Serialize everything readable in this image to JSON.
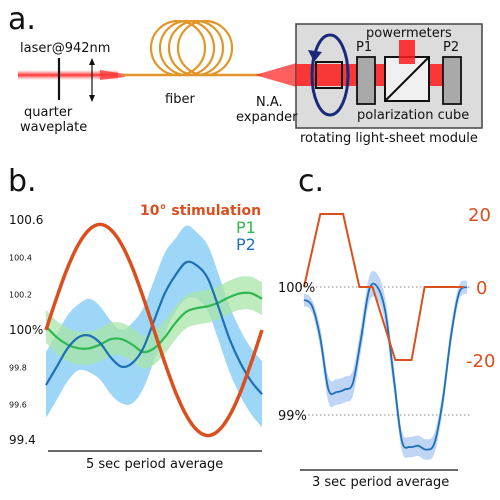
{
  "panel_a": {
    "letter": "a.",
    "laser": "laser@942nm",
    "quarter_waveplate_line1": "quarter",
    "quarter_waveplate_line2": "waveplate",
    "fiber": "fiber",
    "na_expander_line1": "N.A.",
    "na_expander_line2": "expander",
    "powermeters": "powermeters",
    "p1": "P1",
    "p2": "P2",
    "polarization_cube": "polarization cube",
    "module": "rotating light-sheet module",
    "colors": {
      "laser": "#ff1a1a",
      "fiber": "#e0962a",
      "module_box": "#dcdcdc",
      "rotation": "#1a2a7a",
      "polarizer": "#a9a9a9"
    }
  },
  "panel_b": {
    "letter": "b.",
    "stimulation_label": "10° stimulation",
    "p1_label": "P1",
    "p2_label": "P2",
    "period_label": "5 sec period average",
    "colors": {
      "stim": "#d94f1e",
      "p1": "#2fb84f",
      "p1_band": "#a8e6a8",
      "p2": "#1f6fb3",
      "p2_band": "#8ccff5"
    }
  },
  "panel_c": {
    "letter": "c.",
    "period_label": "3 sec period average",
    "colors": {
      "stim": "#d94f1e",
      "signal": "#1f6fb3",
      "band": "#b8d0f5",
      "grid": "#888888"
    }
  },
  "chart_data": [
    {
      "type": "line",
      "panel": "b",
      "title": "",
      "xlabel": "5 sec period average",
      "ylabel": "",
      "y_ticks": [
        "100.6",
        "100.4",
        "100.2",
        "100%",
        "99.8",
        "99.6",
        "99.4"
      ],
      "ylim": [
        99.4,
        100.6
      ],
      "x": [
        0,
        1,
        2,
        3,
        4,
        5,
        6,
        7,
        8,
        9,
        10,
        11,
        12,
        13,
        14,
        15,
        16,
        17,
        18,
        19,
        20
      ],
      "series": [
        {
          "name": "10° stimulation",
          "axis": "stimulation",
          "values": [
            0,
            0.31,
            0.59,
            0.81,
            0.95,
            1.0,
            0.95,
            0.81,
            0.59,
            0.31,
            0,
            -0.31,
            -0.59,
            -0.81,
            -0.95,
            -1.0,
            -0.95,
            -0.81,
            -0.59,
            -0.31,
            0
          ]
        },
        {
          "name": "P1",
          "values": [
            100.02,
            99.96,
            99.92,
            99.9,
            99.9,
            99.92,
            99.95,
            99.95,
            99.92,
            99.88,
            99.9,
            99.96,
            100.04,
            100.1,
            100.12,
            100.13,
            100.15,
            100.18,
            100.2,
            100.2,
            100.17
          ],
          "band": [
            0.09,
            0.09,
            0.09,
            0.09,
            0.09,
            0.09,
            0.09,
            0.09,
            0.09,
            0.09,
            0.09,
            0.09,
            0.09,
            0.09,
            0.09,
            0.09,
            0.09,
            0.09,
            0.09,
            0.09,
            0.09
          ]
        },
        {
          "name": "P2",
          "values": [
            99.7,
            99.8,
            99.9,
            99.96,
            99.97,
            99.93,
            99.85,
            99.8,
            99.82,
            99.9,
            100.05,
            100.2,
            100.3,
            100.37,
            100.35,
            100.28,
            100.12,
            99.95,
            99.82,
            99.72,
            99.65
          ],
          "band": [
            0.18,
            0.18,
            0.18,
            0.18,
            0.2,
            0.2,
            0.2,
            0.2,
            0.22,
            0.22,
            0.22,
            0.22,
            0.2,
            0.2,
            0.18,
            0.18,
            0.18,
            0.18,
            0.18,
            0.18,
            0.18
          ]
        }
      ]
    },
    {
      "type": "line",
      "panel": "c",
      "title": "",
      "xlabel": "3 sec period average",
      "left_ticks": [
        "100%",
        "99%"
      ],
      "right_ticks": [
        "20",
        "0",
        "-20"
      ],
      "ylim": [
        98.5,
        100.5
      ],
      "stim_ylim": [
        -40,
        40
      ],
      "x": [
        0,
        0.05,
        0.1,
        0.15,
        0.2,
        0.25,
        0.3,
        0.35,
        0.4,
        0.45,
        0.5,
        0.55,
        0.6,
        0.65,
        0.7,
        0.75,
        0.8,
        0.85,
        0.9,
        0.95,
        1.0
      ],
      "series": [
        {
          "name": "stimulation",
          "axis": "right",
          "x": [
            0,
            0.1,
            0.24,
            0.34,
            0.42,
            0.56,
            0.66,
            0.74,
            0.81,
            0.98
          ],
          "values": [
            0,
            20,
            20,
            0,
            0,
            -20,
            -20,
            0,
            0,
            0
          ]
        },
        {
          "name": "signal",
          "axis": "left",
          "values": [
            99.9,
            99.85,
            99.6,
            99.2,
            99.18,
            99.2,
            99.25,
            99.6,
            99.98,
            100.0,
            99.8,
            99.3,
            98.8,
            98.75,
            98.76,
            98.73,
            98.78,
            99.1,
            99.6,
            99.95,
            100.0
          ],
          "band": [
            0.05,
            0.05,
            0.08,
            0.1,
            0.1,
            0.1,
            0.1,
            0.1,
            0.1,
            0.1,
            0.1,
            0.1,
            0.08,
            0.08,
            0.08,
            0.08,
            0.08,
            0.08,
            0.08,
            0.06,
            0.05
          ]
        }
      ]
    }
  ]
}
